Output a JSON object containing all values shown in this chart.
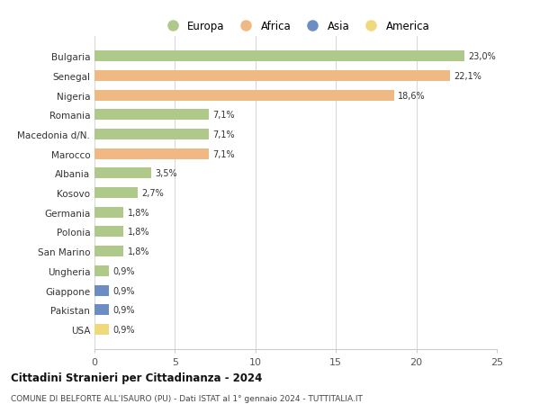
{
  "countries": [
    "Bulgaria",
    "Senegal",
    "Nigeria",
    "Romania",
    "Macedonia d/N.",
    "Marocco",
    "Albania",
    "Kosovo",
    "Germania",
    "Polonia",
    "San Marino",
    "Ungheria",
    "Giappone",
    "Pakistan",
    "USA"
  ],
  "values": [
    23.0,
    22.1,
    18.6,
    7.1,
    7.1,
    7.1,
    3.5,
    2.7,
    1.8,
    1.8,
    1.8,
    0.9,
    0.9,
    0.9,
    0.9
  ],
  "labels": [
    "23,0%",
    "22,1%",
    "18,6%",
    "7,1%",
    "7,1%",
    "7,1%",
    "3,5%",
    "2,7%",
    "1,8%",
    "1,8%",
    "1,8%",
    "0,9%",
    "0,9%",
    "0,9%",
    "0,9%"
  ],
  "continents": [
    "Europa",
    "Africa",
    "Africa",
    "Europa",
    "Europa",
    "Africa",
    "Europa",
    "Europa",
    "Europa",
    "Europa",
    "Europa",
    "Europa",
    "Asia",
    "Asia",
    "America"
  ],
  "colors": {
    "Europa": "#aec98a",
    "Africa": "#f0b983",
    "Asia": "#6b8dc4",
    "America": "#f0d97a"
  },
  "legend_order": [
    "Europa",
    "Africa",
    "Asia",
    "America"
  ],
  "title": "Cittadini Stranieri per Cittadinanza - 2024",
  "subtitle": "COMUNE DI BELFORTE ALL'ISAURO (PU) - Dati ISTAT al 1° gennaio 2024 - TUTTITALIA.IT",
  "xlim": [
    0,
    25
  ],
  "xticks": [
    0,
    5,
    10,
    15,
    20,
    25
  ],
  "background_color": "#ffffff",
  "grid_color": "#d0d0d0"
}
